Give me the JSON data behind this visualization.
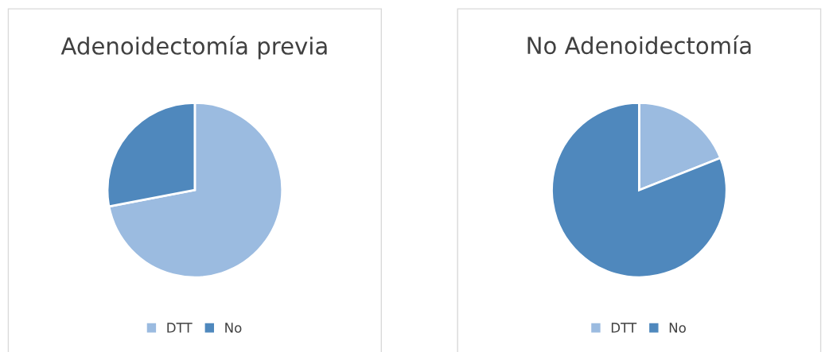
{
  "chart_data": [
    {
      "type": "pie",
      "title": "Adenoidectomía previa",
      "categories": [
        "DTT",
        "No"
      ],
      "values": [
        72,
        28
      ],
      "colors": [
        "#9bbbe0",
        "#4f88bd"
      ],
      "legend": "bottom"
    },
    {
      "type": "pie",
      "title": "No Adenoidectomía",
      "categories": [
        "DTT",
        "No"
      ],
      "values": [
        19,
        81
      ],
      "colors": [
        "#9bbbe0",
        "#4f88bd"
      ],
      "legend": "bottom"
    }
  ]
}
